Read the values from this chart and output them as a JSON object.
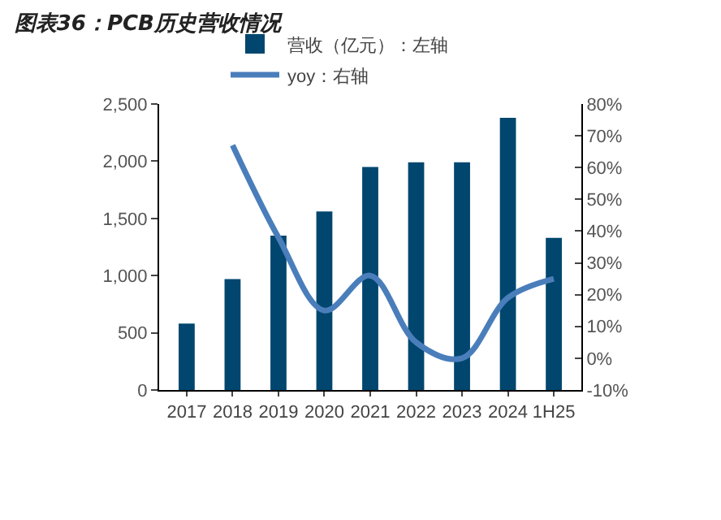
{
  "chart_data": {
    "type": "bar",
    "title": "图表36：PCB历史营收情况",
    "categories": [
      "2017",
      "2018",
      "2019",
      "2020",
      "2021",
      "2022",
      "2023",
      "2024",
      "1H25"
    ],
    "series": [
      {
        "name": "营收（亿元）：左轴",
        "color": "#00466e",
        "values": [
          580,
          970,
          1350,
          1560,
          1950,
          1990,
          1990,
          2380,
          1330
        ]
      },
      {
        "name": "yoy：右轴",
        "type": "line",
        "axis": "y2",
        "color": "#4a7ebb",
        "values": [
          null,
          67,
          38,
          15,
          26,
          5,
          0,
          19,
          25
        ]
      }
    ],
    "ylim": [
      0,
      2500
    ],
    "yticks": [
      0,
      {
        "value": 500,
        "label": "500"
      },
      {
        "value": 1000,
        "label": "1,000"
      },
      {
        "value": 1500,
        "label": "1,500"
      },
      {
        "value": 2000,
        "label": "2,000"
      },
      {
        "value": 2500,
        "label": "2,500"
      }
    ],
    "y2lim": [
      -10,
      80
    ],
    "y2ticks": [
      {
        "value": -10,
        "label": "-10%"
      },
      {
        "value": 0,
        "label": "0%"
      },
      {
        "value": 10,
        "label": "10%"
      },
      {
        "value": 20,
        "label": "20%"
      },
      {
        "value": 30,
        "label": "30%"
      },
      {
        "value": 40,
        "label": "40%"
      },
      {
        "value": 50,
        "label": "50%"
      },
      {
        "value": 60,
        "label": "60%"
      },
      {
        "value": 70,
        "label": "70%"
      },
      {
        "value": 80,
        "label": "80%"
      }
    ],
    "grid": false,
    "legend": "top",
    "marker": "none",
    "line_style": "solid"
  }
}
